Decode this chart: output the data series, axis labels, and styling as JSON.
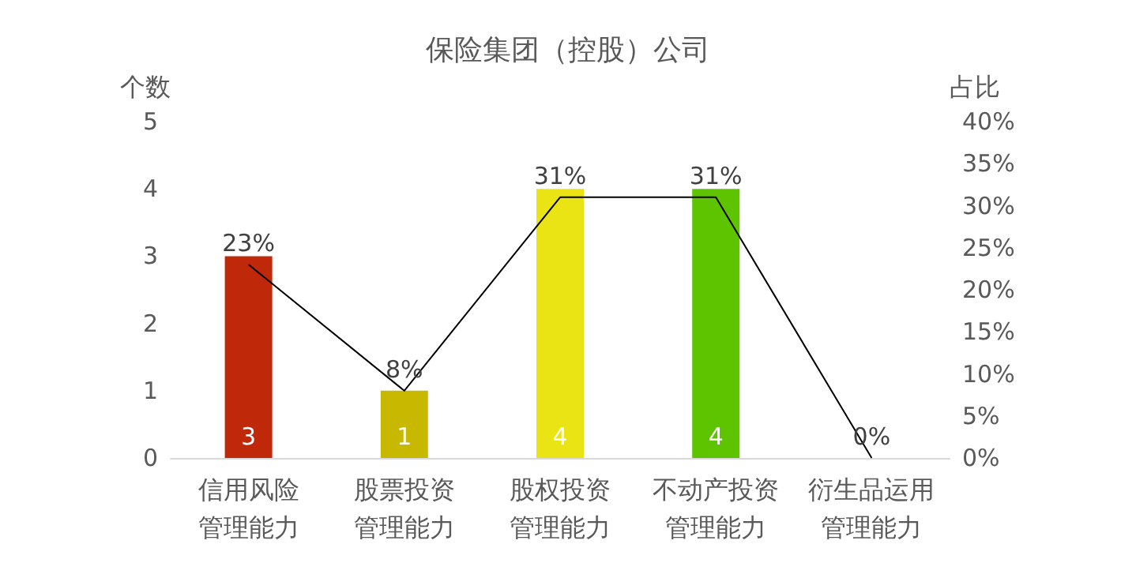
{
  "chart_data": {
    "type": "bar",
    "title": "保险集团（控股）公司",
    "ylabel": "个数",
    "y2label": "占比",
    "categories": [
      "信用风险管理能力",
      "股票投资管理能力",
      "股权投资管理能力",
      "不动产投资管理能力",
      "衍生品运用管理能力"
    ],
    "series": [
      {
        "colors": [
          "#c0280a",
          "#c8b800",
          "#eae414",
          "#5ec400",
          "#5ec400"
        ],
        "values": [
          3,
          1,
          4,
          4,
          0
        ],
        "value_labels": [
          "3",
          "1",
          "4",
          "4",
          null
        ]
      },
      {
        "type": "line",
        "axis": "y2",
        "color": "#000000",
        "values": [
          23,
          8,
          31,
          31,
          0
        ],
        "value_labels": [
          "23%",
          "8%",
          "31%",
          "31%",
          "0%"
        ]
      }
    ],
    "ylim": [
      0,
      5
    ],
    "yticks": [
      0,
      1,
      2,
      3,
      4,
      5
    ],
    "y2lim": [
      0,
      40
    ],
    "y2ticks": [
      {
        "value": 0,
        "label": "0%"
      },
      {
        "value": 5,
        "label": "5%"
      },
      {
        "value": 10,
        "label": "10%"
      },
      {
        "value": 15,
        "label": "15%"
      },
      {
        "value": 20,
        "label": "20%"
      },
      {
        "value": 25,
        "label": "25%"
      },
      {
        "value": 30,
        "label": "30%"
      },
      {
        "value": 35,
        "label": "35%"
      },
      {
        "value": 40,
        "label": "40%"
      }
    ],
    "grid": false,
    "marker": "none",
    "line_style": "solid"
  }
}
